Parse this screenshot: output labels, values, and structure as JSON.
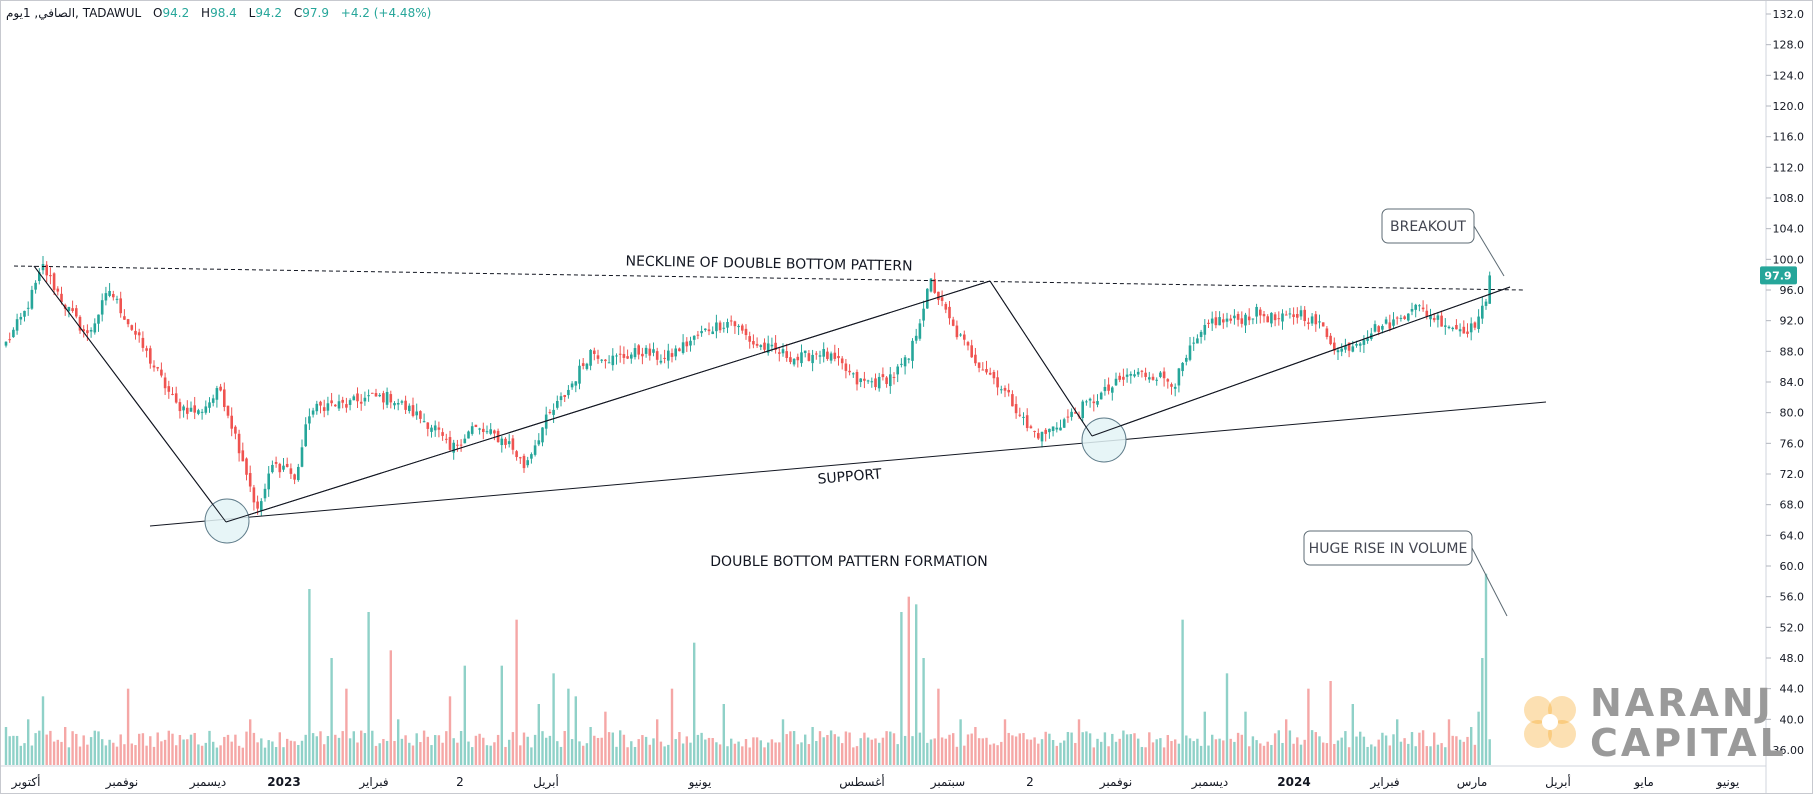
{
  "legend": {
    "symbol": "الصافي",
    "interval": "1يوم",
    "exchange": "TADAWUL",
    "open_label": "O",
    "open": "94.2",
    "high_label": "H",
    "high": "98.4",
    "low_label": "L",
    "low": "94.2",
    "close_label": "C",
    "close": "97.9",
    "change": "+4.2 (+4.48%)"
  },
  "chart_data": {
    "type": "candlestick",
    "y_axis": {
      "ticks": [
        "132.0",
        "128.0",
        "124.0",
        "120.0",
        "116.0",
        "112.0",
        "108.0",
        "104.0",
        "100.0",
        "96.0",
        "92.0",
        "88.0",
        "84.0",
        "80.0",
        "76.0",
        "72.0",
        "68.0",
        "64.0",
        "60.0",
        "56.0",
        "52.0",
        "48.0",
        "44.0",
        "40.0",
        "36.00"
      ],
      "range": [
        34.0,
        133.5
      ]
    },
    "x_axis": {
      "ticks": [
        {
          "label": "أكتوبر",
          "bold": false
        },
        {
          "label": "نوفمبر",
          "bold": false
        },
        {
          "label": "ديسمبر",
          "bold": false
        },
        {
          "label": "2023",
          "bold": true
        },
        {
          "label": "فبراير",
          "bold": false
        },
        {
          "label": "2",
          "bold": false
        },
        {
          "label": "أبريل",
          "bold": false
        },
        {
          "label": "يونيو",
          "bold": false
        },
        {
          "label": "أغسطس",
          "bold": false
        },
        {
          "label": "سبتمبر",
          "bold": false
        },
        {
          "label": "2",
          "bold": false
        },
        {
          "label": "نوفمبر",
          "bold": false
        },
        {
          "label": "ديسمبر",
          "bold": false
        },
        {
          "label": "2024",
          "bold": true
        },
        {
          "label": "فبراير",
          "bold": false
        },
        {
          "label": "مارس",
          "bold": false
        },
        {
          "label": "أبريل",
          "bold": false
        },
        {
          "label": "مايو",
          "bold": false
        },
        {
          "label": "يونيو",
          "bold": false
        }
      ]
    },
    "price_path": [
      [
        0,
        89
      ],
      [
        5,
        93
      ],
      [
        10,
        99
      ],
      [
        16,
        94
      ],
      [
        22,
        90
      ],
      [
        28,
        96
      ],
      [
        34,
        91
      ],
      [
        40,
        86
      ],
      [
        46,
        81
      ],
      [
        52,
        80
      ],
      [
        58,
        83
      ],
      [
        64,
        74
      ],
      [
        68,
        67
      ],
      [
        72,
        73
      ],
      [
        76,
        73
      ],
      [
        78,
        71
      ],
      [
        82,
        80
      ],
      [
        86,
        81
      ],
      [
        92,
        81
      ],
      [
        98,
        82
      ],
      [
        104,
        82
      ],
      [
        110,
        80
      ],
      [
        116,
        78
      ],
      [
        120,
        75
      ],
      [
        126,
        78
      ],
      [
        132,
        77
      ],
      [
        136,
        76
      ],
      [
        140,
        73
      ],
      [
        146,
        79
      ],
      [
        152,
        83
      ],
      [
        158,
        88
      ],
      [
        164,
        87
      ],
      [
        172,
        88
      ],
      [
        178,
        87
      ],
      [
        184,
        89
      ],
      [
        190,
        91
      ],
      [
        196,
        92
      ],
      [
        202,
        89
      ],
      [
        208,
        88
      ],
      [
        214,
        87
      ],
      [
        220,
        88
      ],
      [
        226,
        86
      ],
      [
        230,
        84
      ],
      [
        236,
        84
      ],
      [
        240,
        85
      ],
      [
        244,
        87
      ],
      [
        248,
        94
      ],
      [
        250,
        97
      ],
      [
        252,
        95
      ],
      [
        256,
        91
      ],
      [
        262,
        87
      ],
      [
        268,
        84
      ],
      [
        274,
        80
      ],
      [
        276,
        78
      ],
      [
        280,
        77
      ],
      [
        286,
        79
      ],
      [
        292,
        81
      ],
      [
        298,
        83
      ],
      [
        304,
        85
      ],
      [
        310,
        85
      ],
      [
        316,
        84
      ],
      [
        320,
        88
      ],
      [
        326,
        92
      ],
      [
        332,
        92
      ],
      [
        338,
        93
      ],
      [
        344,
        92
      ],
      [
        350,
        93
      ],
      [
        356,
        91
      ],
      [
        360,
        88
      ],
      [
        364,
        89
      ],
      [
        370,
        91
      ],
      [
        376,
        92
      ],
      [
        380,
        94
      ],
      [
        384,
        93
      ],
      [
        388,
        92
      ],
      [
        392,
        91
      ],
      [
        396,
        91
      ],
      [
        400,
        94
      ],
      [
        401,
        96
      ]
    ],
    "volume": {
      "spikes": [
        [
          0,
          39
        ],
        [
          6,
          40
        ],
        [
          10,
          43
        ],
        [
          16,
          39
        ],
        [
          33,
          44
        ],
        [
          50,
          38
        ],
        [
          62,
          38
        ],
        [
          66,
          40
        ],
        [
          68,
          37
        ],
        [
          82,
          57
        ],
        [
          88,
          48
        ],
        [
          92,
          44
        ],
        [
          98,
          54
        ],
        [
          104,
          49
        ],
        [
          106,
          40
        ],
        [
          120,
          43
        ],
        [
          124,
          47
        ],
        [
          134,
          47
        ],
        [
          138,
          53
        ],
        [
          144,
          42
        ],
        [
          148,
          46
        ],
        [
          152,
          44
        ],
        [
          154,
          43
        ],
        [
          158,
          39
        ],
        [
          162,
          41
        ],
        [
          176,
          40
        ],
        [
          180,
          44
        ],
        [
          186,
          50
        ],
        [
          194,
          42
        ],
        [
          210,
          40
        ],
        [
          218,
          39
        ],
        [
          242,
          54
        ],
        [
          244,
          56
        ],
        [
          246,
          55
        ],
        [
          248,
          48
        ],
        [
          252,
          44
        ],
        [
          258,
          40
        ],
        [
          262,
          39
        ],
        [
          270,
          40
        ],
        [
          290,
          40
        ],
        [
          318,
          53
        ],
        [
          324,
          41
        ],
        [
          330,
          46
        ],
        [
          335,
          41
        ],
        [
          346,
          40
        ],
        [
          352,
          44
        ],
        [
          358,
          45
        ],
        [
          364,
          42
        ],
        [
          376,
          40
        ],
        [
          390,
          40
        ],
        [
          396,
          39
        ],
        [
          398,
          41
        ],
        [
          399,
          48
        ],
        [
          400,
          59
        ]
      ],
      "base_range": [
        36.3,
        38.6
      ]
    }
  },
  "annotations": {
    "neckline": "NECKLINE OF DOUBLE BOTTOM PATTERN",
    "support": "SUPPORT",
    "formation": "DOUBLE BOTTOM PATTERN FORMATION",
    "breakout": "BREAKOUT",
    "volume": "HUGE RISE IN VOLUME"
  },
  "last_price_label": "97.9",
  "colors": {
    "up": "#26a69a",
    "down": "#ef5350",
    "vol_up": "#8fd1c8",
    "vol_down": "#f5a7a6",
    "label_bg": "#26a69a",
    "circle_fill": "#e3f3f6",
    "circle_stroke": "#607d8b",
    "watermark_orange": "#f5a623"
  },
  "watermark": {
    "line1": "NARANJ",
    "line2": "CAPITAL"
  }
}
